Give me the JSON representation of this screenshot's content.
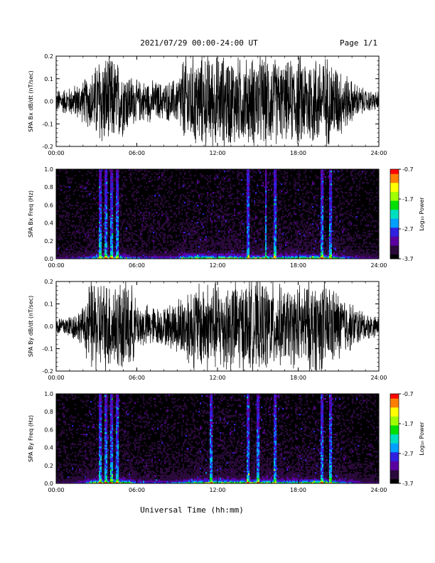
{
  "header": {
    "title": "2021/07/29  00:00-24:00 UT",
    "page": "Page 1/1"
  },
  "x_axis_title": "Universal Time (hh:mm)",
  "colors": {
    "trace": "#000000",
    "colormap": [
      "#000000",
      "#2a0a3a",
      "#5a00a0",
      "#3020e0",
      "#00a0ff",
      "#00e0c0",
      "#00e000",
      "#a0ff00",
      "#ffff00",
      "#ff8000",
      "#ff0000"
    ]
  },
  "chart_data": [
    {
      "id": "bx-timeseries",
      "type": "line",
      "ylabel": "SPA Bx dB/dt (nT/sec)",
      "xlim": [
        0,
        24
      ],
      "xticks": [
        "00:00",
        "06:00",
        "12:00",
        "18:00",
        "24:00"
      ],
      "ylim": [
        -0.2,
        0.2
      ],
      "yticks": [
        "-0.2",
        "-0.1",
        "0.0",
        "0.1",
        "0.2"
      ],
      "ytick_values": [
        -0.2,
        -0.1,
        0.0,
        0.1,
        0.2
      ],
      "envelope": {
        "hours": [
          0,
          1,
          2,
          2.8,
          3.2,
          4.0,
          4.8,
          6,
          7,
          8,
          9,
          9.5,
          10,
          11,
          12,
          13,
          14,
          15,
          16,
          17,
          18,
          19,
          20,
          21,
          22,
          23,
          24
        ],
        "amplitude": [
          0.05,
          0.06,
          0.09,
          0.14,
          0.2,
          0.2,
          0.16,
          0.09,
          0.09,
          0.08,
          0.1,
          0.2,
          0.2,
          0.2,
          0.2,
          0.2,
          0.18,
          0.2,
          0.2,
          0.16,
          0.2,
          0.2,
          0.2,
          0.16,
          0.09,
          0.05,
          0.04
        ]
      }
    },
    {
      "id": "bx-spectrogram",
      "type": "heatmap",
      "ylabel": "SPA Bx Freq (Hz)",
      "xlim": [
        0,
        24
      ],
      "xticks": [
        "00:00",
        "06:00",
        "12:00",
        "18:00",
        "24:00"
      ],
      "ylim": [
        0,
        1.0
      ],
      "yticks": [
        "0.0",
        "0.2",
        "0.4",
        "0.6",
        "0.8",
        "1.0"
      ],
      "ytick_values": [
        0.0,
        0.2,
        0.4,
        0.6,
        0.8,
        1.0
      ],
      "colorbar": {
        "label": "Log₁₀ Power",
        "min": -3.7,
        "max": -0.7,
        "ticks": [
          "-0.7",
          "-1.7",
          "-2.7",
          "-3.7"
        ],
        "tick_values": [
          -0.7,
          -1.7,
          -2.7,
          -3.7
        ]
      },
      "bright_bands_hours": [
        3.3,
        3.7,
        4.1,
        4.5,
        14.3,
        15.6,
        16.3,
        19.8,
        20.4
      ]
    },
    {
      "id": "by-timeseries",
      "type": "line",
      "ylabel": "SPA By dB/dt (nT/sec)",
      "xlim": [
        0,
        24
      ],
      "xticks": [
        "00:00",
        "06:00",
        "12:00",
        "18:00",
        "24:00"
      ],
      "ylim": [
        -0.2,
        0.2
      ],
      "yticks": [
        "-0.2",
        "-0.1",
        "0.0",
        "0.1",
        "0.2"
      ],
      "ytick_values": [
        -0.2,
        -0.1,
        0.0,
        0.1,
        0.2
      ],
      "envelope": {
        "hours": [
          0,
          1,
          2,
          2.5,
          3.2,
          3.6,
          5.5,
          6,
          7,
          8,
          9,
          10,
          11,
          12,
          13,
          14,
          15,
          16,
          17,
          18,
          19,
          20,
          21,
          22,
          23,
          24
        ],
        "amplitude": [
          0.04,
          0.05,
          0.08,
          0.2,
          0.2,
          0.2,
          0.2,
          0.1,
          0.09,
          0.08,
          0.12,
          0.18,
          0.2,
          0.2,
          0.2,
          0.2,
          0.2,
          0.2,
          0.16,
          0.18,
          0.2,
          0.2,
          0.15,
          0.1,
          0.06,
          0.04
        ]
      }
    },
    {
      "id": "by-spectrogram",
      "type": "heatmap",
      "ylabel": "SPA By Freq (Hz)",
      "xlim": [
        0,
        24
      ],
      "xticks": [
        "00:00",
        "06:00",
        "12:00",
        "18:00",
        "24:00"
      ],
      "ylim": [
        0,
        1.0
      ],
      "yticks": [
        "0.0",
        "0.2",
        "0.4",
        "0.6",
        "0.8",
        "1.0"
      ],
      "ytick_values": [
        0.0,
        0.2,
        0.4,
        0.6,
        0.8,
        1.0
      ],
      "colorbar": {
        "label": "Log₁₀ Power",
        "min": -3.7,
        "max": -0.7,
        "ticks": [
          "-0.7",
          "-1.7",
          "-2.7",
          "-3.7"
        ],
        "tick_values": [
          -0.7,
          -1.7,
          -2.7,
          -3.7
        ]
      },
      "bright_bands_hours": [
        3.3,
        3.7,
        4.1,
        4.5,
        11.5,
        14.3,
        15.0,
        16.3,
        19.8,
        20.4
      ]
    }
  ]
}
